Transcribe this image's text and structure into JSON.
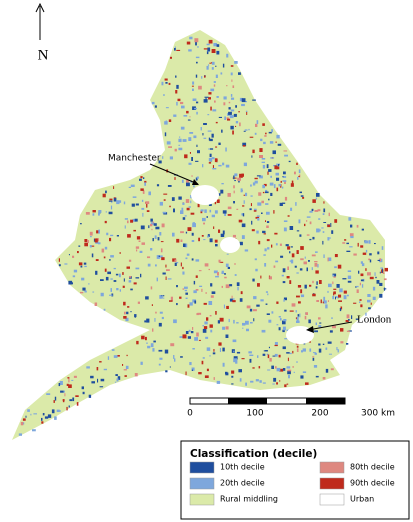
{
  "north": "N",
  "places": [
    {
      "label": "Manchester"
    },
    {
      "label": "London"
    }
  ],
  "scale": {
    "labels": [
      "0",
      "100",
      "200",
      "300 km"
    ]
  },
  "legend": {
    "title": "Classification (decile)",
    "items": [
      {
        "label": "10th decile",
        "color": "#1f4e9e"
      },
      {
        "label": "20th decile",
        "color": "#7ea7dc"
      },
      {
        "label": "Rural middling",
        "color": "#dbeaa9"
      },
      {
        "label": "80th decile",
        "color": "#de8880"
      },
      {
        "label": "90th decile",
        "color": "#bf2a1c"
      },
      {
        "label": "Urban",
        "color": "#ffffff"
      }
    ]
  }
}
